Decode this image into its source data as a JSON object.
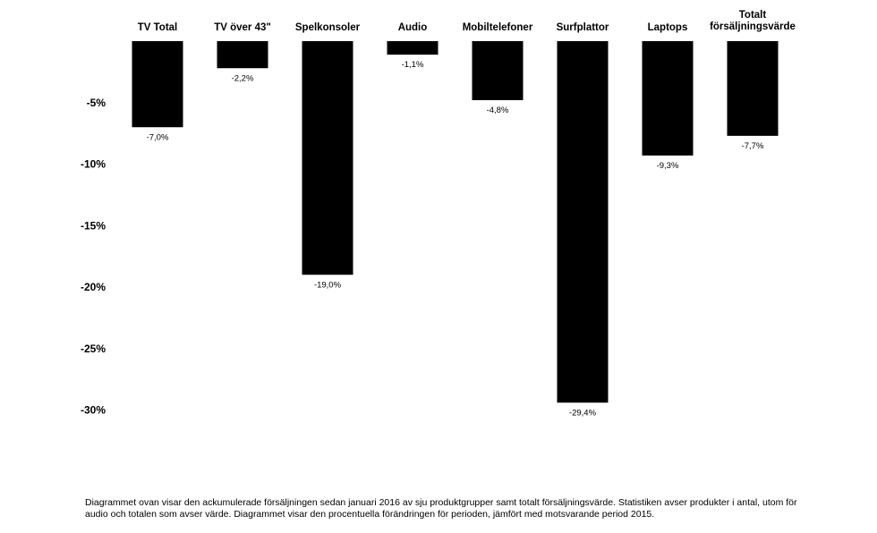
{
  "chart_data": {
    "type": "bar",
    "categories": [
      "TV Total",
      "TV över 43\"",
      "Spelkonsoler",
      "Audio",
      "Mobiltelefoner",
      "Surfplattor",
      "Laptops",
      "Totalt försäljningsvärde"
    ],
    "category_lines": [
      [
        "TV Total"
      ],
      [
        "TV över 43\""
      ],
      [
        "Spelkonsoler"
      ],
      [
        "Audio"
      ],
      [
        "Mobiltelefoner"
      ],
      [
        "Surfplattor"
      ],
      [
        "Laptops"
      ],
      [
        "Totalt",
        "försäljningsvärde"
      ]
    ],
    "values": [
      -7.0,
      -2.2,
      -19.0,
      -1.1,
      -4.8,
      -29.4,
      -9.3,
      -7.7
    ],
    "data_labels": [
      "-7,0%",
      "-2,2%",
      "-19,0%",
      "-1,1%",
      "-4,8%",
      "-29,4%",
      "-9,3%",
      "-7,7%"
    ],
    "yticks": [
      -5,
      -10,
      -15,
      -20,
      -25,
      -30
    ],
    "ytick_labels": [
      "-5%",
      "-10%",
      "-15%",
      "-20%",
      "-25%",
      "-30%"
    ],
    "ylim": [
      -30,
      0
    ],
    "bar_color": "#000000",
    "title": "",
    "xlabel": "",
    "ylabel": ""
  },
  "caption": "Diagrammet ovan visar den ackumulerade försäljningen sedan januari 2016 av sju produktgrupper samt totalt försäljningsvärde.  Statistiken avser produkter i antal, utom för audio och totalen som avser värde. Diagrammet visar den procentuella förändringen för perioden, jämfört med motsvarande period 2015."
}
